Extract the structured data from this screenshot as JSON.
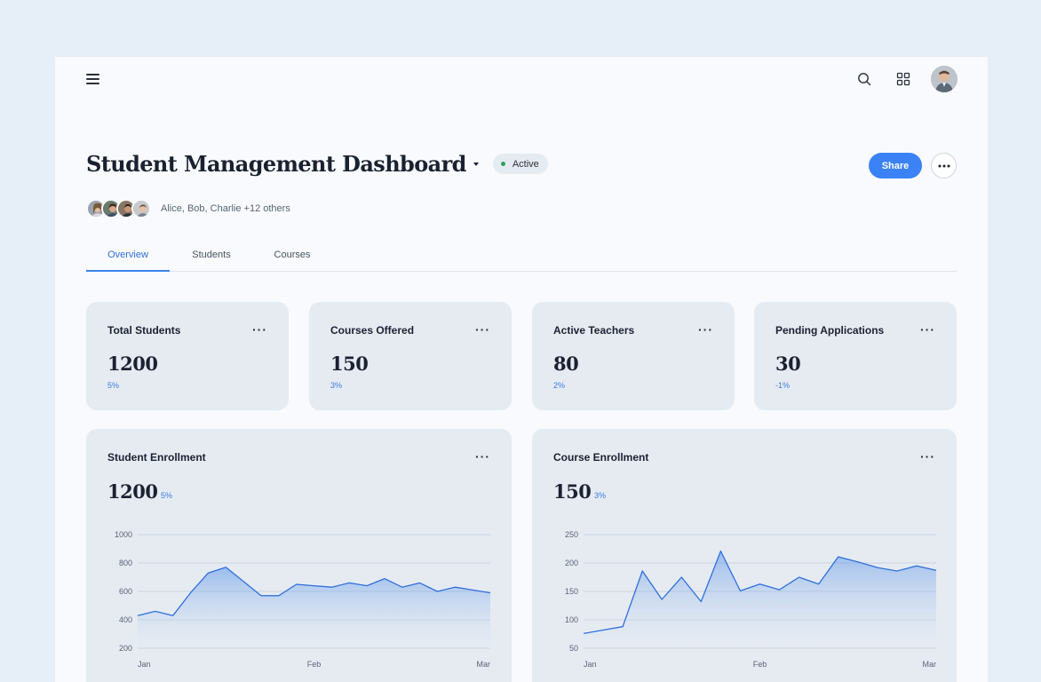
{
  "header": {
    "title": "Student Management Dashboard",
    "status": "Active",
    "share_label": "Share",
    "collaborators_text": "Alice, Bob, Charlie +12 others"
  },
  "tabs": [
    {
      "label": "Overview",
      "active": true
    },
    {
      "label": "Students",
      "active": false
    },
    {
      "label": "Courses",
      "active": false
    }
  ],
  "stats": [
    {
      "title": "Total Students",
      "value": "1200",
      "change": "5%"
    },
    {
      "title": "Courses Offered",
      "value": "150",
      "change": "3%"
    },
    {
      "title": "Active Teachers",
      "value": "80",
      "change": "2%"
    },
    {
      "title": "Pending Applications",
      "value": "30",
      "change": "-1%"
    }
  ],
  "colors": {
    "accent": "#3b82f6",
    "status_dot": "#2aa15d",
    "card_bg": "#e6ebf2",
    "page_bg": "#e6eef8"
  },
  "icons": {
    "menu": "hamburger-menu-icon",
    "search": "search-icon",
    "apps": "grid-icon",
    "more": "more-horizontal-icon"
  },
  "chart_data": [
    {
      "type": "area",
      "title": "Student Enrollment",
      "value": "1200",
      "change": "5%",
      "x_ticks": [
        "Jan",
        "Feb",
        "Mar"
      ],
      "y_ticks": [
        1000,
        800,
        600,
        400,
        200
      ],
      "ylim": [
        200,
        1000
      ],
      "grid": true,
      "series": [
        {
          "values": [
            430,
            460,
            430,
            590,
            730,
            770,
            670,
            570,
            570,
            650,
            640,
            630,
            660,
            640,
            690,
            630,
            660,
            600,
            630,
            610,
            590
          ]
        }
      ]
    },
    {
      "type": "area",
      "title": "Course Enrollment",
      "value": "150",
      "change": "3%",
      "x_ticks": [
        "Jan",
        "Feb",
        "Mar"
      ],
      "y_ticks": [
        250,
        200,
        150,
        100,
        50
      ],
      "ylim": [
        50,
        250
      ],
      "grid": true,
      "series": [
        {
          "values": [
            76,
            82,
            88,
            186,
            136,
            175,
            132,
            221,
            151,
            163,
            153,
            175,
            163,
            211,
            202,
            192,
            186,
            195,
            187
          ]
        }
      ]
    }
  ]
}
